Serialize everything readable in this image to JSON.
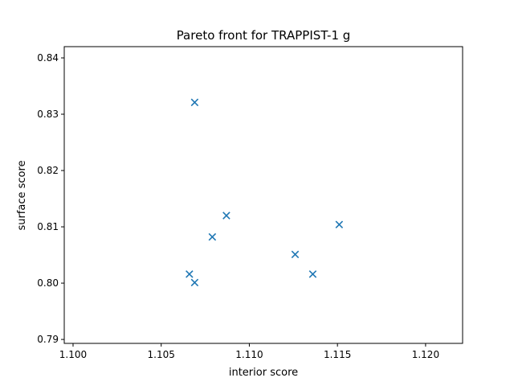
{
  "chart_data": {
    "type": "scatter",
    "title": "Pareto front for TRAPPIST-1 g",
    "xlabel": "interior score",
    "ylabel": "surface score",
    "xlim": [
      1.0995,
      1.1221
    ],
    "ylim": [
      0.7893,
      0.842
    ],
    "xticks": [
      1.1,
      1.105,
      1.11,
      1.115,
      1.12
    ],
    "xtick_labels": [
      "1.100",
      "1.105",
      "1.110",
      "1.115",
      "1.120"
    ],
    "yticks": [
      0.79,
      0.8,
      0.81,
      0.82,
      0.83,
      0.84
    ],
    "ytick_labels": [
      "0.79",
      "0.80",
      "0.81",
      "0.82",
      "0.83",
      "0.84"
    ],
    "grid": false,
    "marker": "x",
    "color": "#1f77b4",
    "points": [
      {
        "x": 1.1069,
        "y": 0.8321
      },
      {
        "x": 1.1087,
        "y": 0.812
      },
      {
        "x": 1.1151,
        "y": 0.8104
      },
      {
        "x": 1.1079,
        "y": 0.8082
      },
      {
        "x": 1.1126,
        "y": 0.8051
      },
      {
        "x": 1.1066,
        "y": 0.8016
      },
      {
        "x": 1.1136,
        "y": 0.8016
      },
      {
        "x": 1.1069,
        "y": 0.8001
      }
    ]
  }
}
